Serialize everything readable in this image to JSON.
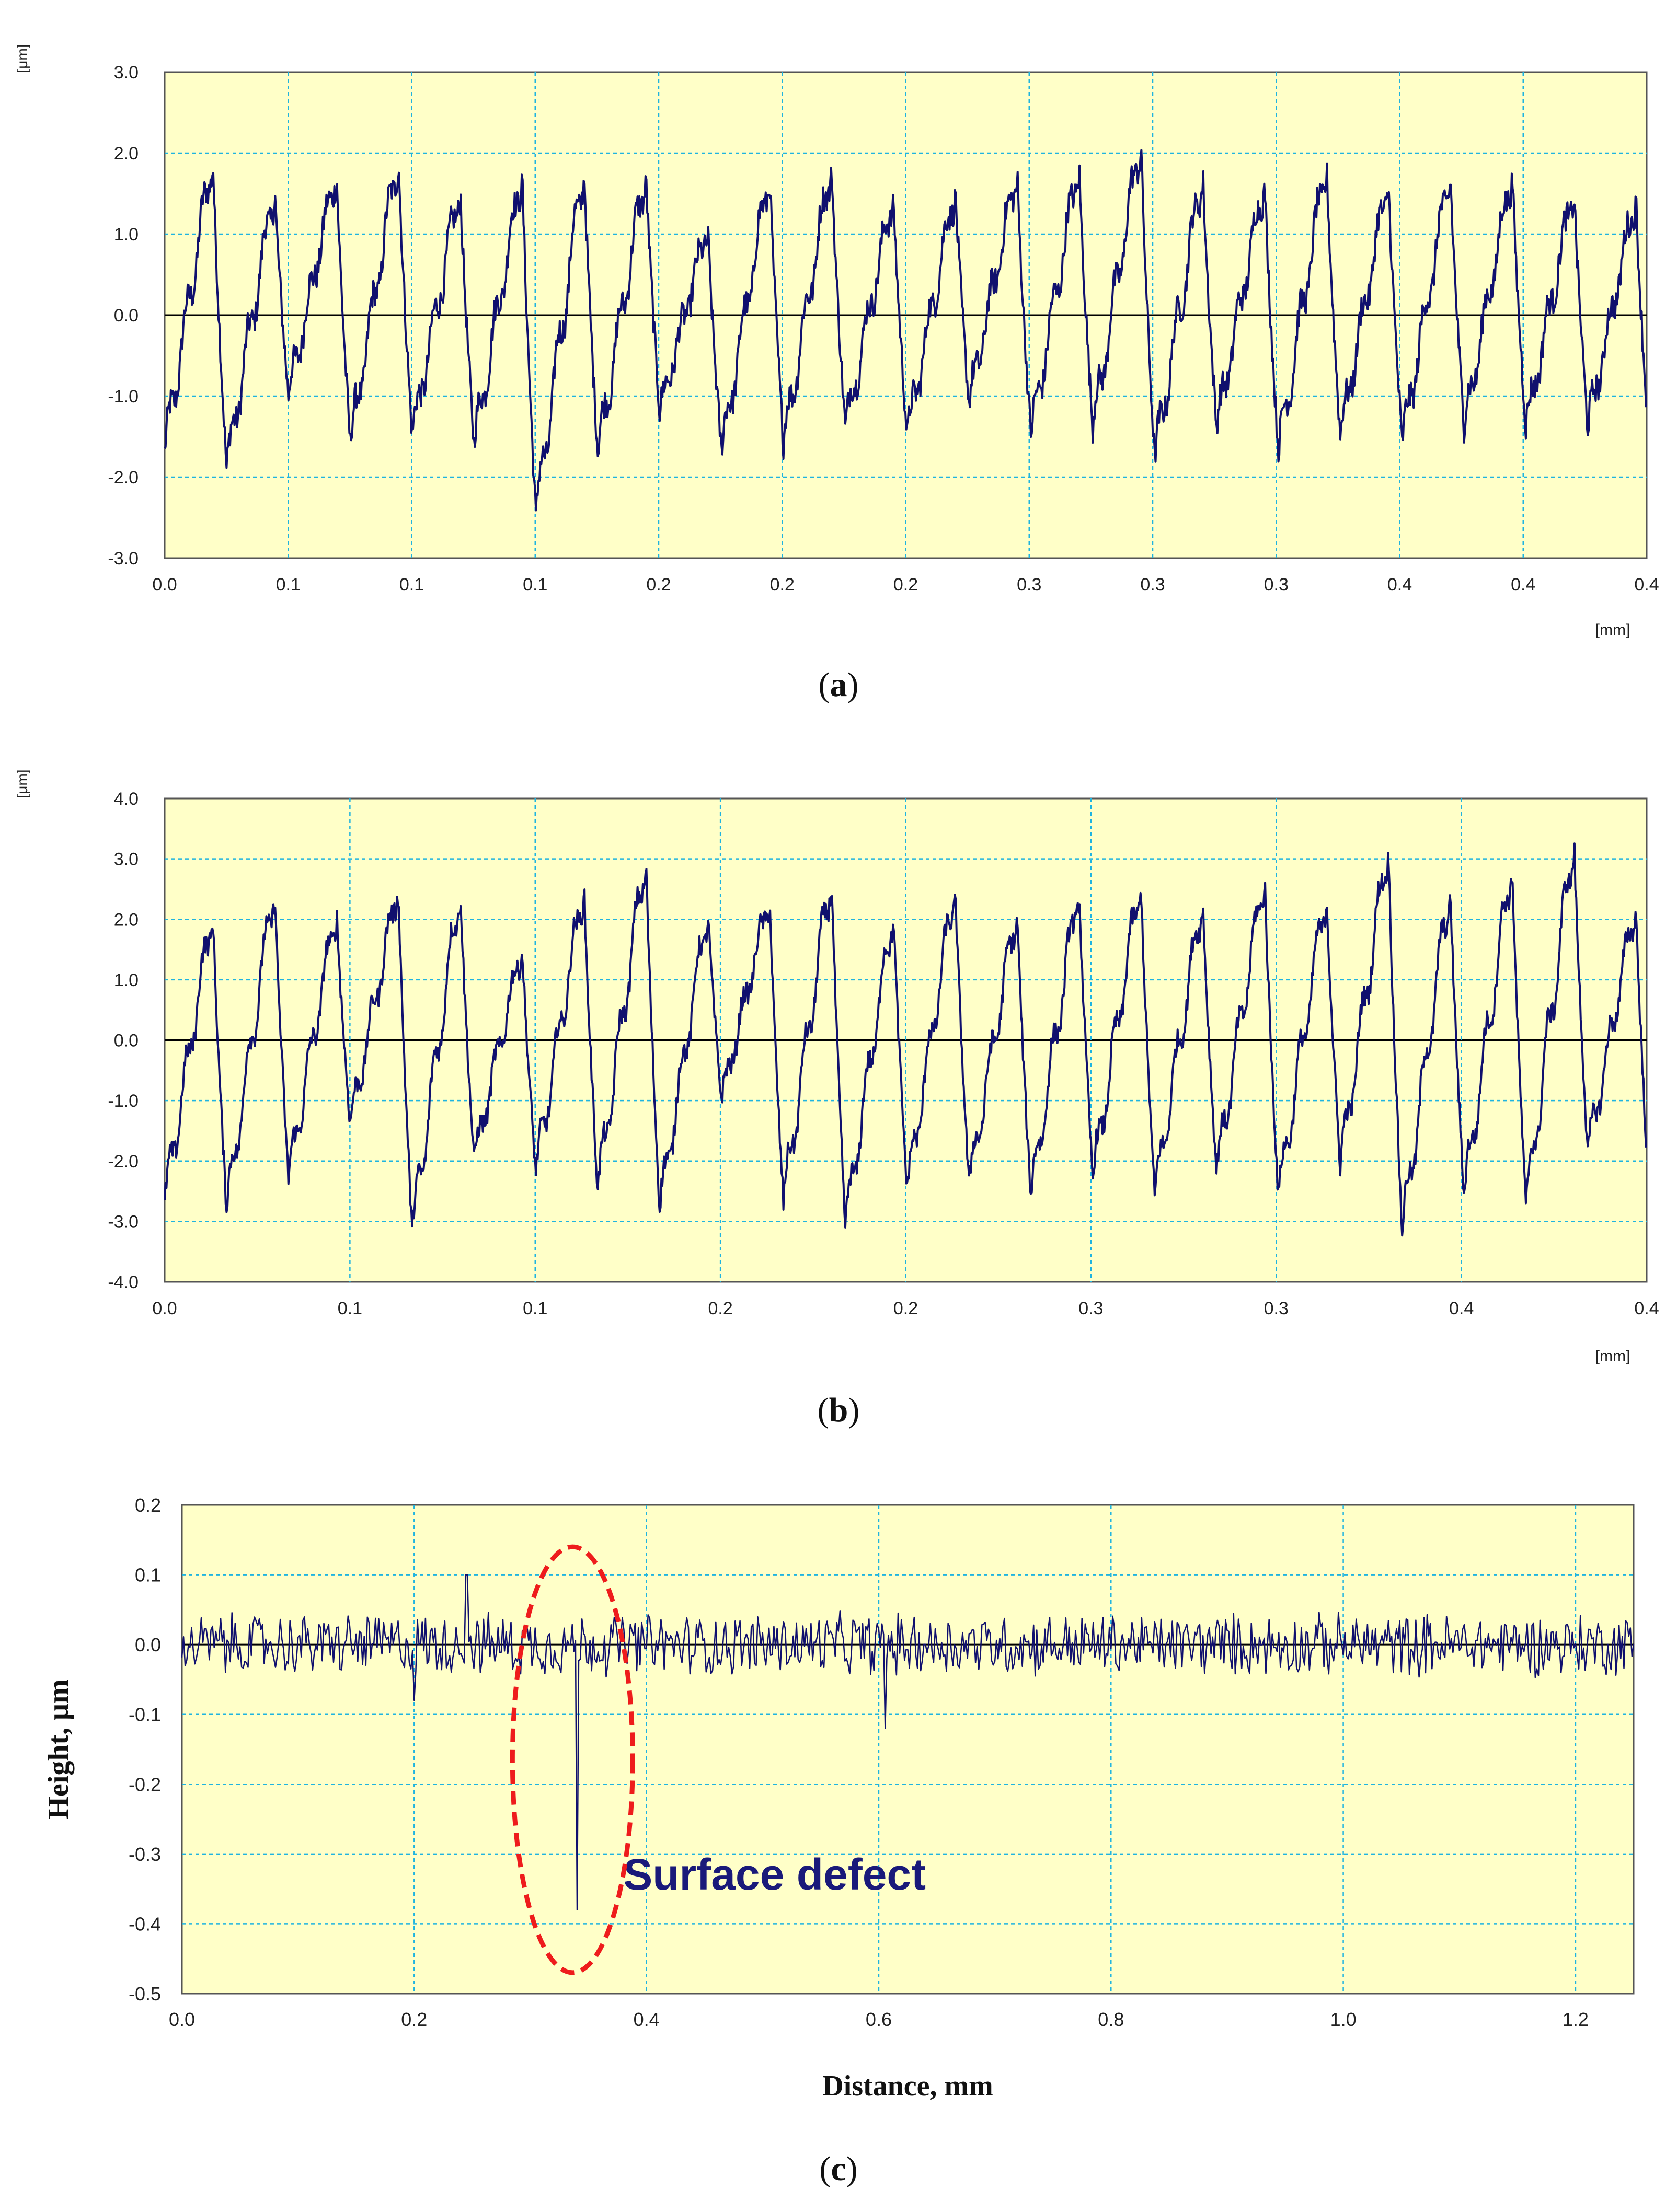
{
  "figure": {
    "panels": [
      {
        "caption_prefix": "(",
        "caption_letter": "a",
        "caption_suffix": ")"
      },
      {
        "caption_prefix": "(",
        "caption_letter": "b",
        "caption_suffix": ")"
      },
      {
        "caption_prefix": "(",
        "caption_letter": "c",
        "caption_suffix": ")"
      }
    ]
  },
  "colors": {
    "plot_background": "#ffffc8",
    "grid": "#1eb4e0",
    "series": "#10106e",
    "zero_line": "#000000",
    "highlight": "#ee1c1c",
    "annotation": "#1a1a7a"
  },
  "chart_data": [
    {
      "type": "line",
      "title": "",
      "ylabel": "[μm]",
      "xlabel": "[mm]",
      "ylim": [
        -3.0,
        3.0
      ],
      "xlim": [
        0,
        0.4
      ],
      "y_ticks": [
        "3.0",
        "2.0",
        "1.0",
        "0.0",
        "-1.0",
        "-2.0",
        "-3.0"
      ],
      "x_ticks": [
        "0.0",
        "0.1",
        "0.1",
        "0.1",
        "0.2",
        "0.2",
        "0.2",
        "0.3",
        "0.3",
        "0.3",
        "0.4",
        "0.4",
        "0.4"
      ],
      "grid": true,
      "series": [
        {
          "description_free": true,
          "cycles": 24,
          "period": 0.0167,
          "peaks": [
            2.0,
            1.6,
            1.8,
            2.0,
            1.6,
            1.8,
            1.9,
            1.8,
            1.1,
            1.8,
            1.9,
            1.5,
            1.6,
            1.8,
            1.9,
            2.2,
            1.8,
            1.7,
            1.9,
            1.7,
            1.8,
            1.8,
            1.6,
            1.5
          ],
          "troughs": [
            -1.7,
            -1.9,
            -1.0,
            -1.6,
            -1.5,
            -1.6,
            -2.5,
            -1.7,
            -1.2,
            -1.7,
            -1.6,
            -1.4,
            -1.5,
            -1.1,
            -1.5,
            -1.4,
            -1.8,
            -1.4,
            -1.7,
            -1.5,
            -1.6,
            -1.4,
            -1.4,
            -1.4
          ]
        }
      ]
    },
    {
      "type": "line",
      "title": "",
      "ylabel": "[μm]",
      "xlabel": "[mm]",
      "ylim": [
        -4.0,
        4.0
      ],
      "xlim": [
        0,
        0.4
      ],
      "y_ticks": [
        "4.0",
        "3.0",
        "2.0",
        "1.0",
        "0.0",
        "-1.0",
        "-2.0",
        "-3.0",
        "-4.0"
      ],
      "x_ticks": [
        "0.0",
        "0.1",
        "0.1",
        "0.2",
        "0.2",
        "0.3",
        "0.3",
        "0.4",
        "0.4"
      ],
      "grid": true,
      "series": [
        {
          "cycles": 24,
          "period": 0.0167,
          "peaks": [
            2.2,
            2.6,
            2.2,
            2.6,
            2.6,
            1.6,
            2.6,
            3.1,
            2.2,
            2.4,
            2.8,
            2.2,
            2.6,
            2.2,
            2.6,
            2.7,
            2.4,
            2.8,
            2.5,
            3.3,
            2.6,
            3.0,
            3.4,
            2.3
          ],
          "troughs": [
            -2.7,
            -2.8,
            -2.3,
            -1.4,
            -3.2,
            -2.0,
            -2.2,
            -2.5,
            -2.8,
            -1.0,
            -2.7,
            -3.1,
            -2.5,
            -2.4,
            -2.6,
            -2.3,
            -2.6,
            -2.2,
            -2.6,
            -2.1,
            -3.2,
            -2.6,
            -2.8,
            -1.9
          ]
        }
      ]
    },
    {
      "type": "line",
      "title": "",
      "ylabel": "Height, μm",
      "xlabel": "Distance, mm",
      "ylim": [
        -0.5,
        0.2
      ],
      "xlim": [
        0,
        1.25
      ],
      "y_ticks": [
        "0.2",
        "0.1",
        "0.0",
        "-0.1",
        "-0.2",
        "-0.3",
        "-0.4",
        "-0.5"
      ],
      "x_ticks": [
        "0.0",
        "0.2",
        "0.4",
        "0.6",
        "0.8",
        "1.0",
        "1.2"
      ],
      "grid": true,
      "series": [
        {
          "noise_amplitude": 0.05,
          "spikes": [
            {
              "x": 0.2,
              "y": -0.08
            },
            {
              "x": 0.245,
              "y": 0.1
            },
            {
              "x": 0.34,
              "y": -0.38
            },
            {
              "x": 0.605,
              "y": -0.12
            }
          ]
        }
      ],
      "annotations": [
        {
          "text": "Surface  defect",
          "x": 0.38,
          "y": -0.33
        }
      ]
    }
  ]
}
